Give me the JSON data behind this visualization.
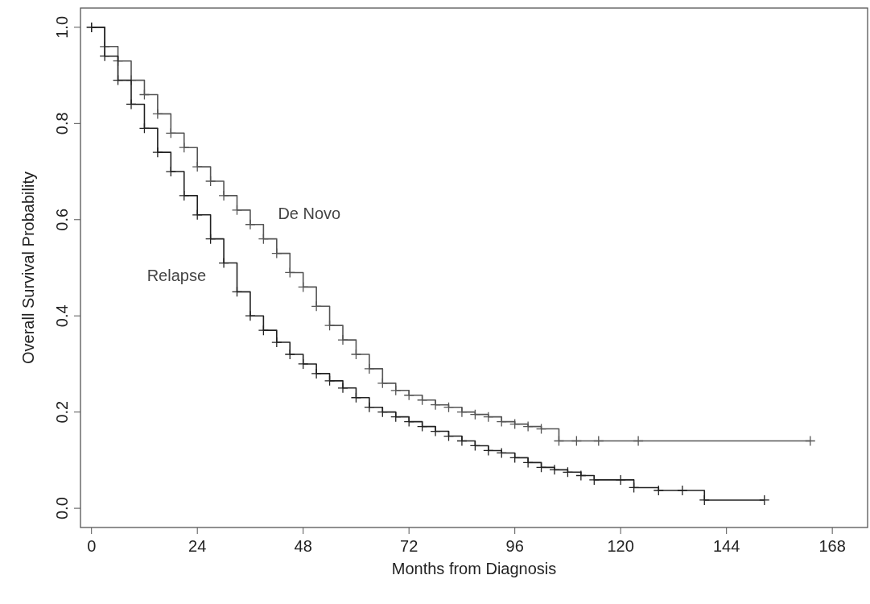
{
  "chart_data": {
    "type": "step",
    "xlabel": "Months from Diagnosis",
    "ylabel": "Overall Survival Probability",
    "xlim": [
      -2.5,
      176
    ],
    "ylim": [
      -0.04,
      1.04
    ],
    "xticks": [
      0,
      24,
      48,
      72,
      96,
      120,
      144,
      168
    ],
    "yticks": [
      {
        "value": 0,
        "label": "0.0"
      },
      0.2,
      0.4,
      0.6,
      0.8,
      {
        "value": 1,
        "label": "1.0"
      }
    ],
    "marker": "cross",
    "line_style": "solid",
    "series": [
      {
        "name": "De Novo",
        "color": "#555555",
        "x": [
          0,
          3,
          6,
          9,
          12,
          15,
          18,
          21,
          24,
          27,
          30,
          33,
          36,
          39,
          42,
          45,
          48,
          51,
          54,
          57,
          60,
          63,
          66,
          69,
          72,
          75,
          78,
          81,
          84,
          87,
          90,
          93,
          96,
          99,
          102,
          106,
          110,
          115,
          124,
          163
        ],
        "values": [
          1.0,
          0.96,
          0.93,
          0.89,
          0.86,
          0.82,
          0.78,
          0.75,
          0.71,
          0.68,
          0.65,
          0.62,
          0.59,
          0.56,
          0.53,
          0.49,
          0.46,
          0.42,
          0.38,
          0.35,
          0.32,
          0.29,
          0.26,
          0.245,
          0.235,
          0.225,
          0.215,
          0.21,
          0.2,
          0.195,
          0.19,
          0.18,
          0.175,
          0.17,
          0.165,
          0.14,
          0.14,
          0.14,
          0.14,
          0.14
        ]
      },
      {
        "name": "Relapse",
        "color": "#222222",
        "x": [
          0,
          3,
          6,
          9,
          12,
          15,
          18,
          21,
          24,
          27,
          30,
          33,
          36,
          39,
          42,
          45,
          48,
          51,
          54,
          57,
          60,
          63,
          66,
          69,
          72,
          75,
          78,
          81,
          84,
          87,
          90,
          93,
          96,
          99,
          102,
          105,
          108,
          111,
          114,
          120,
          123,
          128.6,
          134,
          139,
          152.6
        ],
        "values": [
          1.0,
          0.94,
          0.89,
          0.84,
          0.79,
          0.74,
          0.7,
          0.65,
          0.61,
          0.56,
          0.51,
          0.45,
          0.4,
          0.37,
          0.345,
          0.32,
          0.3,
          0.28,
          0.265,
          0.25,
          0.23,
          0.21,
          0.2,
          0.19,
          0.18,
          0.17,
          0.16,
          0.15,
          0.14,
          0.13,
          0.12,
          0.115,
          0.105,
          0.095,
          0.085,
          0.08,
          0.075,
          0.068,
          0.059,
          0.059,
          0.043,
          0.037,
          0.037,
          0.017,
          0.017
        ]
      }
    ]
  }
}
